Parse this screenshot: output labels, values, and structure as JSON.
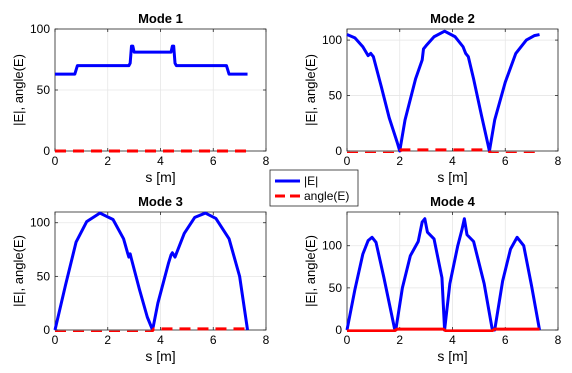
{
  "chart_data": [
    {
      "type": "line",
      "title": "Mode 1",
      "xlabel": "s [m]",
      "ylabel": "|E|, angle(E)",
      "xlim": [
        0,
        8
      ],
      "ylim": [
        0,
        100
      ],
      "xticks": [
        "0",
        "2",
        "4",
        "6",
        "8"
      ],
      "yticks": [
        "0",
        "50",
        "100"
      ],
      "grid": true,
      "series": [
        {
          "name": "|E|",
          "color": "#0000ff",
          "style": "solid",
          "x": [
            0,
            0.75,
            0.85,
            2.8,
            2.85,
            2.9,
            2.95,
            3.0,
            4.4,
            4.45,
            4.5,
            4.55,
            4.6,
            6.5,
            6.6,
            7.3
          ],
          "y": [
            63,
            63,
            70,
            70,
            72,
            86,
            86,
            81,
            81,
            86,
            86,
            72,
            70,
            70,
            63,
            63
          ]
        },
        {
          "name": "angle(E)",
          "color": "#ff0000",
          "style": "dashed",
          "x": [
            0,
            7.3
          ],
          "y": [
            0,
            0
          ]
        }
      ]
    },
    {
      "type": "line",
      "title": "Mode 2",
      "xlabel": "s [m]",
      "ylabel": "|E|, angle(E)",
      "xlim": [
        0,
        8
      ],
      "ylim": [
        0,
        110
      ],
      "xticks": [
        "0",
        "2",
        "4",
        "6",
        "8"
      ],
      "yticks": [
        "0",
        "50",
        "100"
      ],
      "grid": true,
      "series": [
        {
          "name": "|E|",
          "color": "#0000ff",
          "style": "solid",
          "x": [
            0,
            0.3,
            0.6,
            0.8,
            0.9,
            1.0,
            1.3,
            1.6,
            1.9,
            2.0,
            2.2,
            2.6,
            2.85,
            2.9,
            3.0,
            3.3,
            3.7,
            4.1,
            4.4,
            4.5,
            4.6,
            4.8,
            5.1,
            5.4,
            5.6,
            6.0,
            6.4,
            6.8,
            7.1,
            7.3
          ],
          "y": [
            105,
            102,
            94,
            86,
            88,
            85,
            58,
            30,
            8,
            0,
            28,
            65,
            82,
            92,
            95,
            103,
            108,
            103,
            94,
            88,
            85,
            65,
            32,
            0,
            28,
            62,
            88,
            100,
            104,
            105
          ]
        },
        {
          "name": "angle(E)",
          "color": "#ff0000",
          "style": "dashed",
          "x": [
            0,
            1.95,
            2.05,
            5.35,
            5.45,
            7.3
          ],
          "y": [
            -2,
            -2,
            1,
            1,
            -2,
            -2
          ]
        }
      ]
    },
    {
      "type": "line",
      "title": "Mode 3",
      "xlabel": "s [m]",
      "ylabel": "|E|, angle(E)",
      "xlim": [
        0,
        8
      ],
      "ylim": [
        0,
        110
      ],
      "xticks": [
        "0",
        "2",
        "4",
        "6",
        "8"
      ],
      "yticks": [
        "0",
        "50",
        "100"
      ],
      "grid": true,
      "series": [
        {
          "name": "|E|",
          "color": "#0000ff",
          "style": "solid",
          "x": [
            0,
            0.4,
            0.8,
            1.2,
            1.7,
            2.2,
            2.6,
            2.75,
            2.8,
            2.85,
            2.9,
            3.2,
            3.5,
            3.7,
            3.9,
            4.3,
            4.4,
            4.45,
            4.55,
            4.9,
            5.3,
            5.7,
            6.1,
            6.6,
            7.0,
            7.3
          ],
          "y": [
            0,
            42,
            82,
            101,
            109,
            103,
            85,
            72,
            68,
            71,
            66,
            38,
            12,
            0,
            25,
            62,
            70,
            72,
            68,
            90,
            105,
            109,
            104,
            85,
            50,
            0
          ]
        },
        {
          "name": "angle(E)",
          "color": "#ff0000",
          "style": "dashed",
          "x": [
            0,
            3.65,
            3.75,
            7.3
          ],
          "y": [
            -2,
            -2,
            1,
            1
          ]
        }
      ]
    },
    {
      "type": "line",
      "title": "Mode 4",
      "xlabel": "s [m]",
      "ylabel": "|E|, angle(E)",
      "xlim": [
        0,
        8
      ],
      "ylim": [
        0,
        140
      ],
      "xticks": [
        "0",
        "2",
        "4",
        "6",
        "8"
      ],
      "yticks": [
        "0",
        "50",
        "100"
      ],
      "grid": true,
      "series": [
        {
          "name": "|E|",
          "color": "#0000ff",
          "style": "solid",
          "x": [
            0,
            0.3,
            0.6,
            0.8,
            0.95,
            1.1,
            1.4,
            1.8,
            1.85,
            2.1,
            2.4,
            2.7,
            2.85,
            2.95,
            3.05,
            3.3,
            3.6,
            3.7,
            3.9,
            4.2,
            4.35,
            4.45,
            4.55,
            4.8,
            5.2,
            5.5,
            5.6,
            5.9,
            6.2,
            6.45,
            6.7,
            7.0,
            7.3
          ],
          "y": [
            0,
            48,
            90,
            106,
            110,
            104,
            62,
            2,
            0,
            50,
            88,
            105,
            128,
            132,
            116,
            108,
            62,
            0,
            55,
            100,
            118,
            132,
            113,
            105,
            55,
            2,
            0,
            58,
            96,
            110,
            100,
            52,
            0
          ]
        },
        {
          "name": "angle(E)",
          "color": "#ff0000",
          "style": "solid",
          "x": [
            0,
            1.8,
            1.9,
            3.65,
            3.75,
            5.5,
            5.6,
            7.3
          ],
          "y": [
            -1,
            -1,
            1,
            1,
            -1,
            -1,
            1,
            1
          ]
        }
      ]
    }
  ],
  "legend": {
    "placement": "center",
    "entries": [
      {
        "label": "|E|",
        "color": "#0000ff",
        "style": "solid"
      },
      {
        "label": "angle(E)",
        "color": "#ff0000",
        "style": "dashed"
      }
    ]
  }
}
